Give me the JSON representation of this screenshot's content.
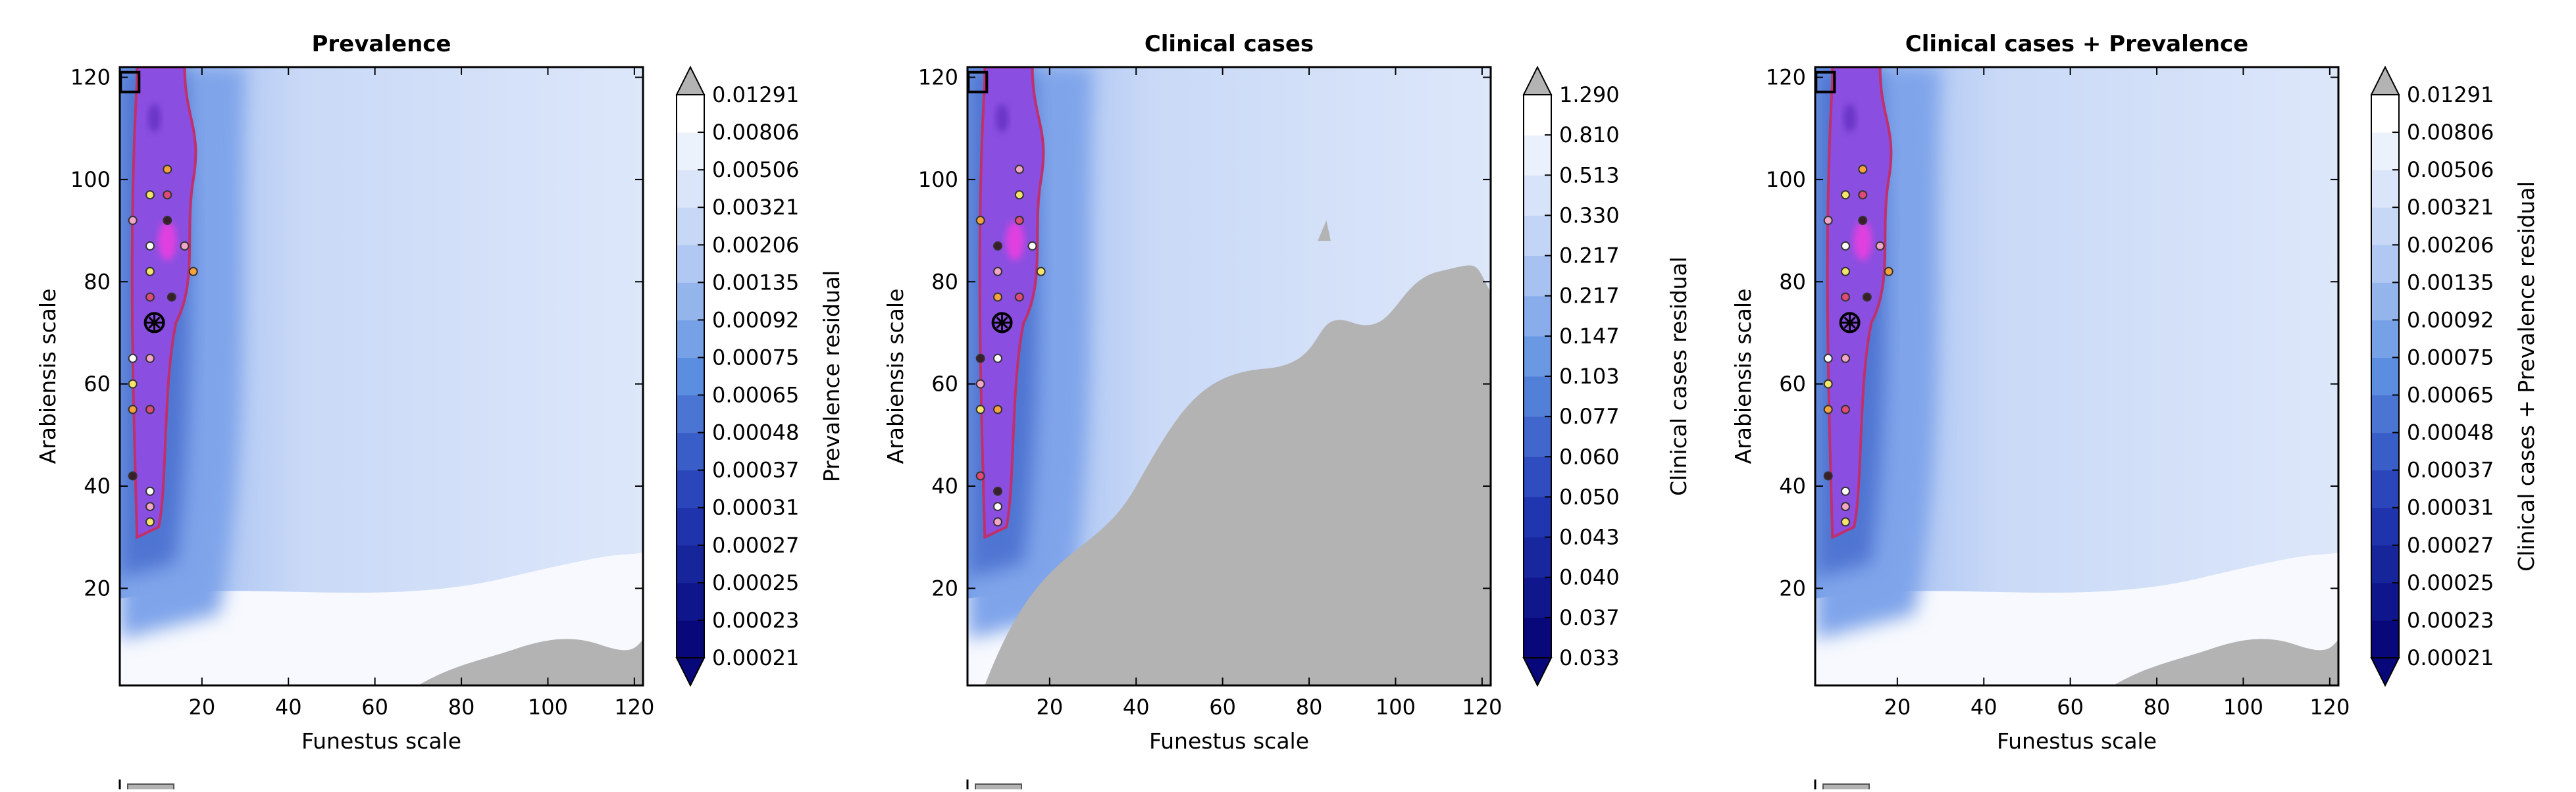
{
  "chart_data": [
    {
      "type": "heatmap",
      "title": "Prevalence",
      "xlabel": "Funestus scale",
      "ylabel": "Arabiensis scale",
      "xlim": [
        1,
        122
      ],
      "ylim": [
        1,
        122
      ],
      "xticks": [
        20,
        40,
        60,
        80,
        100,
        120
      ],
      "yticks": [
        20,
        40,
        60,
        80,
        100,
        120
      ],
      "colorbar_label": "Prevalence residual",
      "colorbar_ticks": [
        "0.00021",
        "0.00023",
        "0.00025",
        "0.00027",
        "0.00031",
        "0.00037",
        "0.00048",
        "0.00065",
        "0.00075",
        "0.00092",
        "0.00135",
        "0.00206",
        "0.00321",
        "0.00506",
        "0.00806",
        "0.01291"
      ],
      "gray_region": "bottom-right",
      "best_fit": {
        "x": 9,
        "y": 72
      },
      "points": [
        {
          "x": 4,
          "y": 92
        },
        {
          "x": 8,
          "y": 97
        },
        {
          "x": 12,
          "y": 102
        },
        {
          "x": 12,
          "y": 97
        },
        {
          "x": 12,
          "y": 92
        },
        {
          "x": 8,
          "y": 87
        },
        {
          "x": 16,
          "y": 87
        },
        {
          "x": 8,
          "y": 82
        },
        {
          "x": 18,
          "y": 82
        },
        {
          "x": 8,
          "y": 77
        },
        {
          "x": 13,
          "y": 77
        },
        {
          "x": 4,
          "y": 65
        },
        {
          "x": 8,
          "y": 65
        },
        {
          "x": 4,
          "y": 60
        },
        {
          "x": 4,
          "y": 55
        },
        {
          "x": 8,
          "y": 55
        },
        {
          "x": 4,
          "y": 42
        },
        {
          "x": 8,
          "y": 39
        },
        {
          "x": 8,
          "y": 36
        },
        {
          "x": 8,
          "y": 33
        }
      ]
    },
    {
      "type": "heatmap",
      "title": "Clinical cases",
      "xlabel": "Funestus scale",
      "ylabel": "Arabiensis scale",
      "xlim": [
        1,
        122
      ],
      "ylim": [
        1,
        122
      ],
      "xticks": [
        20,
        40,
        60,
        80,
        100,
        120
      ],
      "yticks": [
        20,
        40,
        60,
        80,
        100,
        120
      ],
      "colorbar_label": "Clinical cases residual",
      "colorbar_ticks": [
        "0.033",
        "0.037",
        "0.040",
        "0.043",
        "0.050",
        "0.060",
        "0.077",
        "0.103",
        "0.147",
        "0.217",
        "0.217",
        "0.330",
        "0.513",
        "0.810",
        "1.290"
      ],
      "gray_region": "large-bottom-right",
      "best_fit": {
        "x": 9,
        "y": 72
      },
      "points": [
        {
          "x": 13,
          "y": 102
        },
        {
          "x": 13,
          "y": 97
        },
        {
          "x": 4,
          "y": 92
        },
        {
          "x": 13,
          "y": 92
        },
        {
          "x": 8,
          "y": 87
        },
        {
          "x": 16,
          "y": 87
        },
        {
          "x": 8,
          "y": 82
        },
        {
          "x": 18,
          "y": 82
        },
        {
          "x": 8,
          "y": 77
        },
        {
          "x": 13,
          "y": 77
        },
        {
          "x": 4,
          "y": 65
        },
        {
          "x": 8,
          "y": 65
        },
        {
          "x": 4,
          "y": 60
        },
        {
          "x": 4,
          "y": 55
        },
        {
          "x": 8,
          "y": 55
        },
        {
          "x": 4,
          "y": 42
        },
        {
          "x": 8,
          "y": 39
        },
        {
          "x": 8,
          "y": 36
        },
        {
          "x": 8,
          "y": 33
        }
      ]
    },
    {
      "type": "heatmap",
      "title": "Clinical cases + Prevalence",
      "xlabel": "Funestus scale",
      "ylabel": "Arabiensis scale",
      "xlim": [
        1,
        122
      ],
      "ylim": [
        1,
        122
      ],
      "xticks": [
        20,
        40,
        60,
        80,
        100,
        120
      ],
      "yticks": [
        20,
        40,
        60,
        80,
        100,
        120
      ],
      "colorbar_label": "Clinical cases + Prevalence residual",
      "colorbar_ticks": [
        "0.00021",
        "0.00023",
        "0.00025",
        "0.00027",
        "0.00031",
        "0.00037",
        "0.00048",
        "0.00065",
        "0.00075",
        "0.00092",
        "0.00135",
        "0.00206",
        "0.00321",
        "0.00506",
        "0.00806",
        "0.01291"
      ],
      "gray_region": "bottom-right",
      "best_fit": {
        "x": 9,
        "y": 72
      },
      "points": [
        {
          "x": 4,
          "y": 92
        },
        {
          "x": 8,
          "y": 97
        },
        {
          "x": 12,
          "y": 102
        },
        {
          "x": 12,
          "y": 97
        },
        {
          "x": 12,
          "y": 92
        },
        {
          "x": 8,
          "y": 87
        },
        {
          "x": 16,
          "y": 87
        },
        {
          "x": 8,
          "y": 82
        },
        {
          "x": 18,
          "y": 82
        },
        {
          "x": 8,
          "y": 77
        },
        {
          "x": 13,
          "y": 77
        },
        {
          "x": 4,
          "y": 65
        },
        {
          "x": 8,
          "y": 65
        },
        {
          "x": 4,
          "y": 60
        },
        {
          "x": 4,
          "y": 55
        },
        {
          "x": 8,
          "y": 55
        },
        {
          "x": 4,
          "y": 42
        },
        {
          "x": 8,
          "y": 39
        },
        {
          "x": 8,
          "y": 36
        },
        {
          "x": 8,
          "y": 33
        }
      ]
    }
  ],
  "colors": {
    "band_dark": "#08087a",
    "band_mid": "#5b8de0",
    "band_light": "#eef3fc",
    "band_white": "#ffffff",
    "gray": "#b3b3b3",
    "purple": "#8a4fe0",
    "magenta": "#e040e0",
    "contour": "#c0306a"
  },
  "point_colors": [
    "#f4a6c8",
    "#f5e36a",
    "#f5a33a",
    "#e04a78",
    "#3a1e2a",
    "#ffffff"
  ]
}
